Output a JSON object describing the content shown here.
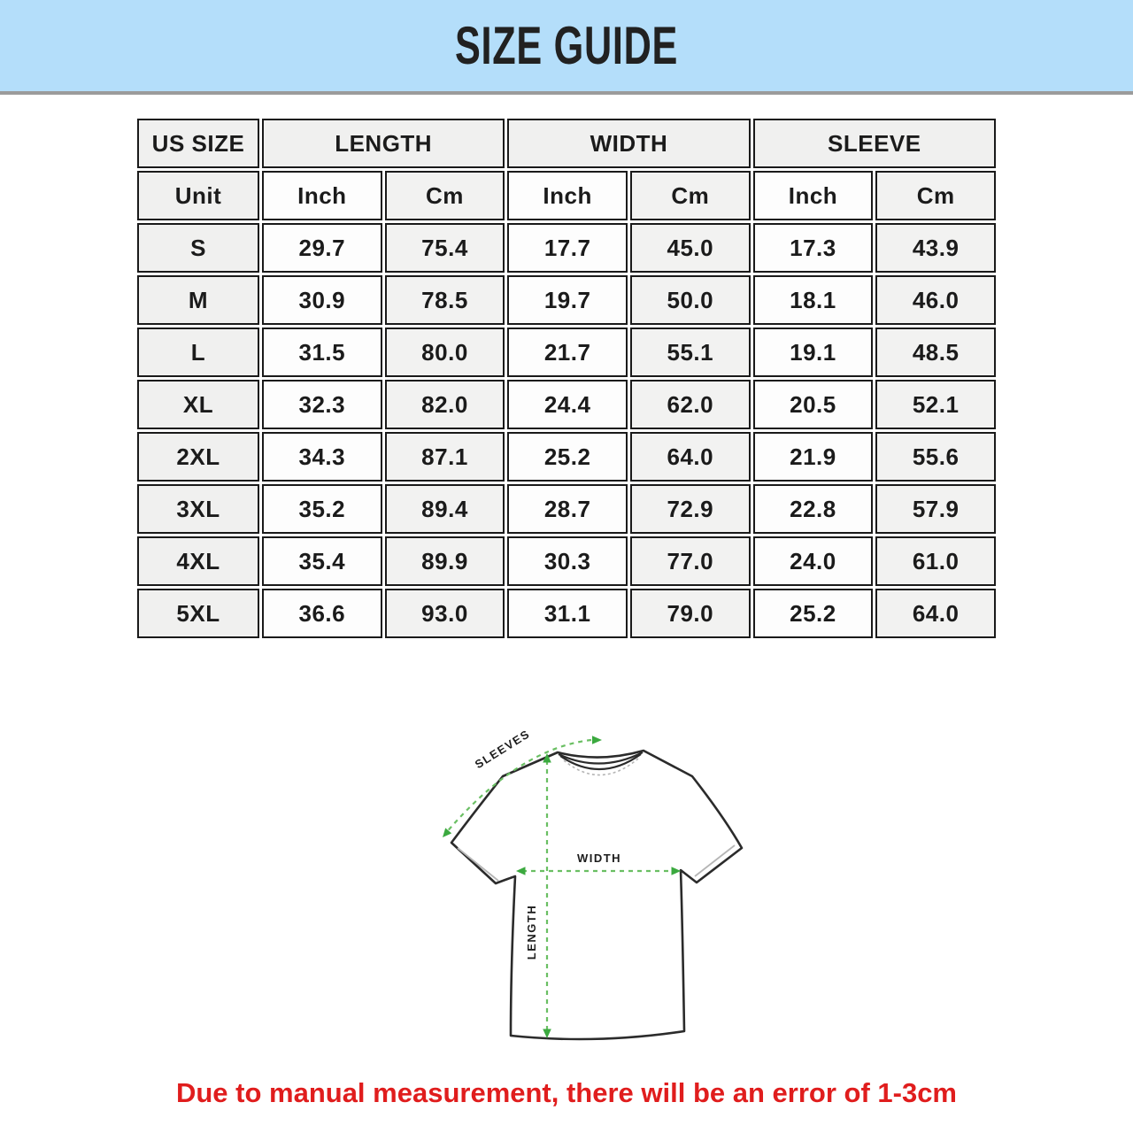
{
  "banner": {
    "title": "SIZE GUIDE",
    "background": "#b4defa",
    "divider_color": "#9b9b9b"
  },
  "table": {
    "group_headers": [
      {
        "label": "US SIZE",
        "span": 1
      },
      {
        "label": "LENGTH",
        "span": 2
      },
      {
        "label": "WIDTH",
        "span": 2
      },
      {
        "label": "SLEEVE",
        "span": 2
      }
    ],
    "unit_row": [
      "Unit",
      "Inch",
      "Cm",
      "Inch",
      "Cm",
      "Inch",
      "Cm"
    ],
    "rows": [
      [
        "S",
        "29.7",
        "75.4",
        "17.7",
        "45.0",
        "17.3",
        "43.9"
      ],
      [
        "M",
        "30.9",
        "78.5",
        "19.7",
        "50.0",
        "18.1",
        "46.0"
      ],
      [
        "L",
        "31.5",
        "80.0",
        "21.7",
        "55.1",
        "19.1",
        "48.5"
      ],
      [
        "XL",
        "32.3",
        "82.0",
        "24.4",
        "62.0",
        "20.5",
        "52.1"
      ],
      [
        "2XL",
        "34.3",
        "87.1",
        "25.2",
        "64.0",
        "21.9",
        "55.6"
      ],
      [
        "3XL",
        "35.2",
        "89.4",
        "28.7",
        "72.9",
        "22.8",
        "57.9"
      ],
      [
        "4XL",
        "35.4",
        "89.9",
        "30.3",
        "77.0",
        "24.0",
        "61.0"
      ],
      [
        "5XL",
        "36.6",
        "93.0",
        "31.1",
        "79.0",
        "25.2",
        "64.0"
      ]
    ]
  },
  "diagram": {
    "labels": {
      "sleeves": "SLEEVES",
      "width": "WIDTH",
      "length": "LENGTH"
    },
    "arrow_color": "#4db551",
    "outline_color": "#2b2b2b"
  },
  "note": {
    "text": "Due to manual measurement, there will be an error of 1-3cm",
    "color": "#e01d1d"
  }
}
